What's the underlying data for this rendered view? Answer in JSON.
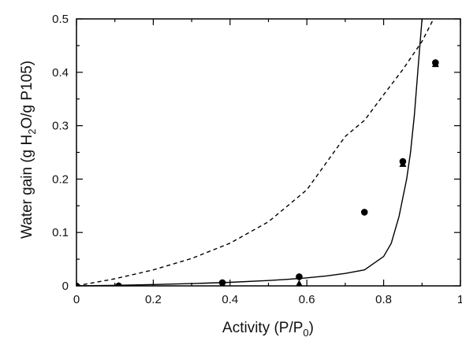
{
  "chart_data": {
    "type": "scatter",
    "xlabel": "Activity (P/P0)",
    "ylabel": "Water gain (g H2O/g P105)",
    "xlabel_parts": {
      "main": "Activity (P/P",
      "sub": "0",
      "end": ")"
    },
    "ylabel_parts": {
      "pre": "Water gain (g H",
      "sub": "2",
      "post": "O/g P105)"
    },
    "xlim": [
      0,
      1
    ],
    "ylim": [
      0,
      0.5
    ],
    "x_ticks": [
      "0",
      "0.2",
      "0.4",
      "0.6",
      "0.8",
      "1"
    ],
    "y_ticks": [
      "0",
      "0.1",
      "0.2",
      "0.3",
      "0.4",
      "0.5"
    ],
    "grid": false,
    "series": [
      {
        "marker": "circle",
        "x": [
          0.0,
          0.11,
          0.38,
          0.58,
          0.75,
          0.85,
          0.935
        ],
        "y": [
          0.0,
          0.0,
          0.006,
          0.017,
          0.138,
          0.233,
          0.418
        ]
      },
      {
        "marker": "triangle",
        "x": [
          0.0,
          0.11,
          0.38,
          0.58,
          0.85,
          0.935
        ],
        "y": [
          0.0,
          0.0,
          0.002,
          0.004,
          0.228,
          0.415
        ]
      },
      {
        "line_style": "solid",
        "x": [
          0,
          0.1,
          0.2,
          0.3,
          0.4,
          0.5,
          0.55,
          0.6,
          0.65,
          0.7,
          0.75,
          0.8,
          0.82,
          0.84,
          0.86,
          0.87,
          0.88,
          0.89,
          0.9
        ],
        "y": [
          0,
          0.0011,
          0.0025,
          0.0043,
          0.0067,
          0.01,
          0.0122,
          0.015,
          0.0186,
          0.0233,
          0.03,
          0.055,
          0.08,
          0.13,
          0.2,
          0.25,
          0.32,
          0.41,
          0.5
        ]
      },
      {
        "line_style": "dashed",
        "x": [
          0,
          0.1,
          0.2,
          0.3,
          0.4,
          0.5,
          0.6,
          0.7,
          0.75,
          0.8,
          0.85,
          0.9,
          0.93
        ],
        "y": [
          0,
          0.0133,
          0.03,
          0.0514,
          0.08,
          0.12,
          0.18,
          0.28,
          0.31,
          0.358,
          0.405,
          0.458,
          0.5
        ]
      }
    ]
  }
}
